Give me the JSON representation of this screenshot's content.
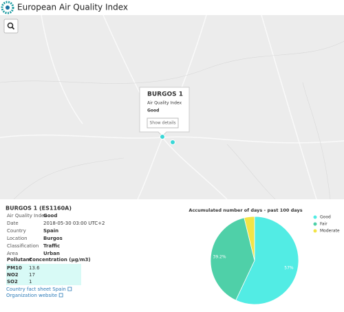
{
  "header": {
    "title": "European Air Quality Index"
  },
  "map": {
    "popup": {
      "title": "BURGOS 1",
      "label": "Air Quality Index",
      "value": "Good",
      "button": "Show details"
    }
  },
  "station": {
    "title": "BURGOS 1 (ES1160A)",
    "fields": [
      {
        "label": "Air Quality Index",
        "value": "Good"
      },
      {
        "label": "Date",
        "value": "2018-05-30 03:00 UTC+2"
      },
      {
        "label": "Country",
        "value": "Spain"
      },
      {
        "label": "Location",
        "value": "Burgos"
      },
      {
        "label": "Classification",
        "value": "Traffic"
      },
      {
        "label": "Area",
        "value": "Urban"
      }
    ],
    "pollutants": {
      "headers": [
        "Pollutant",
        "Concentration (µg/m3)"
      ],
      "rows": [
        [
          "PM10",
          13.6
        ],
        [
          "NO2",
          17
        ],
        [
          "SO2",
          1
        ]
      ]
    },
    "links": [
      "Country fact sheet Spain",
      "Organization website"
    ]
  },
  "chart_data": {
    "type": "pie",
    "title": "Accumulated number of days - past 100 days",
    "categories": [
      "Good",
      "Fair",
      "Moderate"
    ],
    "values": [
      57,
      39.2,
      3.8
    ],
    "value_labels": [
      "57%",
      "39.2%",
      null
    ],
    "colors": [
      "#52ece4",
      "#4fd0a8",
      "#f2e447"
    ],
    "legend": "right"
  }
}
